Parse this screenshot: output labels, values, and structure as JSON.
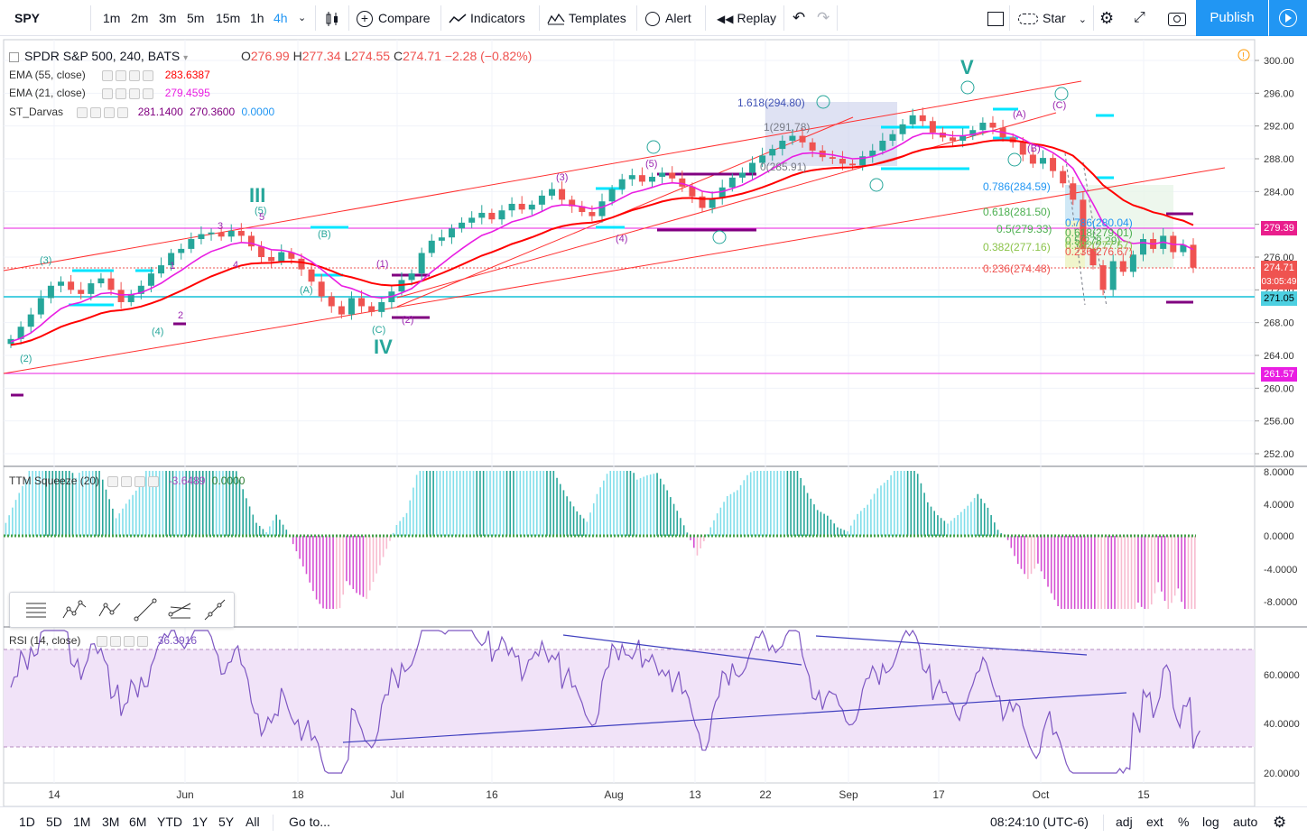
{
  "toolbar": {
    "symbol": "SPY",
    "intervals": [
      "1m",
      "2m",
      "3m",
      "5m",
      "15m",
      "1h",
      "4h"
    ],
    "active_interval": "4h",
    "compare": "Compare",
    "indicators": "Indicators",
    "templates": "Templates",
    "alert": "Alert",
    "replay": "Replay",
    "layout_name": "Star",
    "publish": "Publish"
  },
  "legend": {
    "title": "SPDR S&P 500, 240, BATS",
    "open_label": "O",
    "open": "276.99",
    "high_label": "H",
    "high": "277.34",
    "low_label": "L",
    "low": "274.55",
    "close_label": "C",
    "close": "274.71",
    "change": "−2.28 (−0.82%)",
    "indicators": [
      {
        "name": "EMA (55, close)",
        "values": [
          "283.6387"
        ],
        "color": "#ff0000"
      },
      {
        "name": "EMA (21, close)",
        "values": [
          "279.4595"
        ],
        "color": "#e91ee2"
      },
      {
        "name": "ST_Darvas",
        "values": [
          "281.1400",
          "270.3600",
          "0.0000"
        ],
        "color": "#800080"
      }
    ]
  },
  "price_axis": {
    "ticks": [
      "300.00",
      "296.00",
      "292.00",
      "288.00",
      "284.00",
      "280.00",
      "276.00",
      "272.00",
      "268.00",
      "264.00",
      "260.00",
      "256.00",
      "252.00"
    ],
    "labels": [
      {
        "text": "279.39",
        "color": "#e91e8c"
      },
      {
        "text": "274.71",
        "color": "#ef5350"
      },
      {
        "text": "03:05:49",
        "color": "#ef5350"
      },
      {
        "text": "271.05",
        "color": "#4dd0e1"
      },
      {
        "text": "261.57",
        "color": "#e91ee2"
      }
    ]
  },
  "time_axis": [
    "14",
    "Jun",
    "18",
    "Jul",
    "16",
    "Aug",
    "13",
    "22",
    "Sep",
    "17",
    "Oct",
    "15"
  ],
  "squeeze": {
    "title": "TTM Squeeze (20)",
    "values": [
      "-3.6489",
      "0.0000"
    ],
    "axis": [
      "8.0000",
      "4.0000",
      "0.0000",
      "-4.0000",
      "-8.0000"
    ]
  },
  "rsi": {
    "title": "RSI (14, close)",
    "value": "36.3916",
    "axis": [
      "60.0000",
      "40.0000",
      "20.0000"
    ]
  },
  "fib_labels": [
    {
      "text": "1.618(294.80)",
      "color": "#3f51b5"
    },
    {
      "text": "1(291.78)",
      "color": "#787b86"
    },
    {
      "text": "0(285.91)",
      "color": "#787b86"
    },
    {
      "text": "0.786(284.59)",
      "color": "#2196f3"
    },
    {
      "text": "0.618(281.50)",
      "color": "#4caf50"
    },
    {
      "text": "0.5(279.33)",
      "color": "#4caf50"
    },
    {
      "text": "0.382(277.16)",
      "color": "#8bc34a"
    },
    {
      "text": "0.236(274.48)",
      "color": "#ef5350"
    },
    {
      "text": "0.786(280.04)",
      "color": "#2196f3"
    },
    {
      "text": "0.618(279.01)",
      "color": "#4caf50"
    },
    {
      "text": "0.5(278.29)",
      "color": "#4caf50"
    },
    {
      "text": "0.382(277.57)",
      "color": "#8bc34a"
    },
    {
      "text": "0.236(276.67)",
      "color": "#ef5350"
    }
  ],
  "wave_labels": {
    "major": [
      "III",
      "IV",
      "V"
    ],
    "minor": [
      "(2)",
      "(3)",
      "(4)",
      "(5)",
      "(A)",
      "(B)",
      "(C)",
      "(1)",
      "(2)",
      "(3)",
      "(4)",
      "(5)",
      "(A)",
      "(B)",
      "(C)",
      "1",
      "2",
      "3",
      "4",
      "5"
    ]
  },
  "bottom": {
    "ranges": [
      "1D",
      "5D",
      "1M",
      "3M",
      "6M",
      "YTD",
      "1Y",
      "5Y",
      "All"
    ],
    "goto": "Go to...",
    "clock": "08:24:10 (UTC-6)",
    "adj": "adj",
    "ext": "ext",
    "pct": "%",
    "log": "log",
    "auto": "auto"
  },
  "chart_data": {
    "type": "candlestick",
    "title": "SPDR S&P 500, 240, BATS",
    "ylim": [
      250,
      302
    ],
    "x_ticks": [
      "14",
      "Jun",
      "18",
      "Jul",
      "16",
      "Aug",
      "13",
      "22",
      "Sep",
      "17",
      "Oct",
      "15"
    ],
    "close_series": [
      266.0,
      267.5,
      269.0,
      271.0,
      272.5,
      273.0,
      272.0,
      271.5,
      272.8,
      273.4,
      272.0,
      270.5,
      271.5,
      272.5,
      274.0,
      275.0,
      276.5,
      277.0,
      278.2,
      278.8,
      279.0,
      278.5,
      279.2,
      278.6,
      277.3,
      276.0,
      275.5,
      276.6,
      275.8,
      274.5,
      273.0,
      271.2,
      270.0,
      269.0,
      271.0,
      270.0,
      269.3,
      270.5,
      271.8,
      273.2,
      274.0,
      276.5,
      278.0,
      278.4,
      279.5,
      280.2,
      280.8,
      281.4,
      280.6,
      281.7,
      282.5,
      281.8,
      282.4,
      283.5,
      284.3,
      283.0,
      282.2,
      281.5,
      281.0,
      282.8,
      284.3,
      285.5,
      286.0,
      285.2,
      285.8,
      286.3,
      285.6,
      284.6,
      283.4,
      282.0,
      283.2,
      284.5,
      285.7,
      286.3,
      287.5,
      288.4,
      289.2,
      290.2,
      290.8,
      290.0,
      289.0,
      288.2,
      288.0,
      287.4,
      287.2,
      288.3,
      289.0,
      290.2,
      291.0,
      292.2,
      293.3,
      292.6,
      291.2,
      290.6,
      290.2,
      290.8,
      291.5,
      292.4,
      291.8,
      290.6,
      290.0,
      288.5,
      287.4,
      288.1,
      286.5,
      285.0,
      283.0,
      277.0,
      275.0,
      272.0,
      275.5,
      274.2,
      276.3,
      278.2,
      277.0,
      278.6,
      276.6,
      277.5,
      274.71
    ],
    "series": [
      {
        "name": "EMA (55, close)",
        "color": "#ff0000",
        "last": 283.6387
      },
      {
        "name": "EMA (21, close)",
        "color": "#e91ee2",
        "last": 279.4595
      }
    ],
    "horizontal_levels": [
      279.39,
      274.71,
      271.05,
      261.57
    ]
  }
}
